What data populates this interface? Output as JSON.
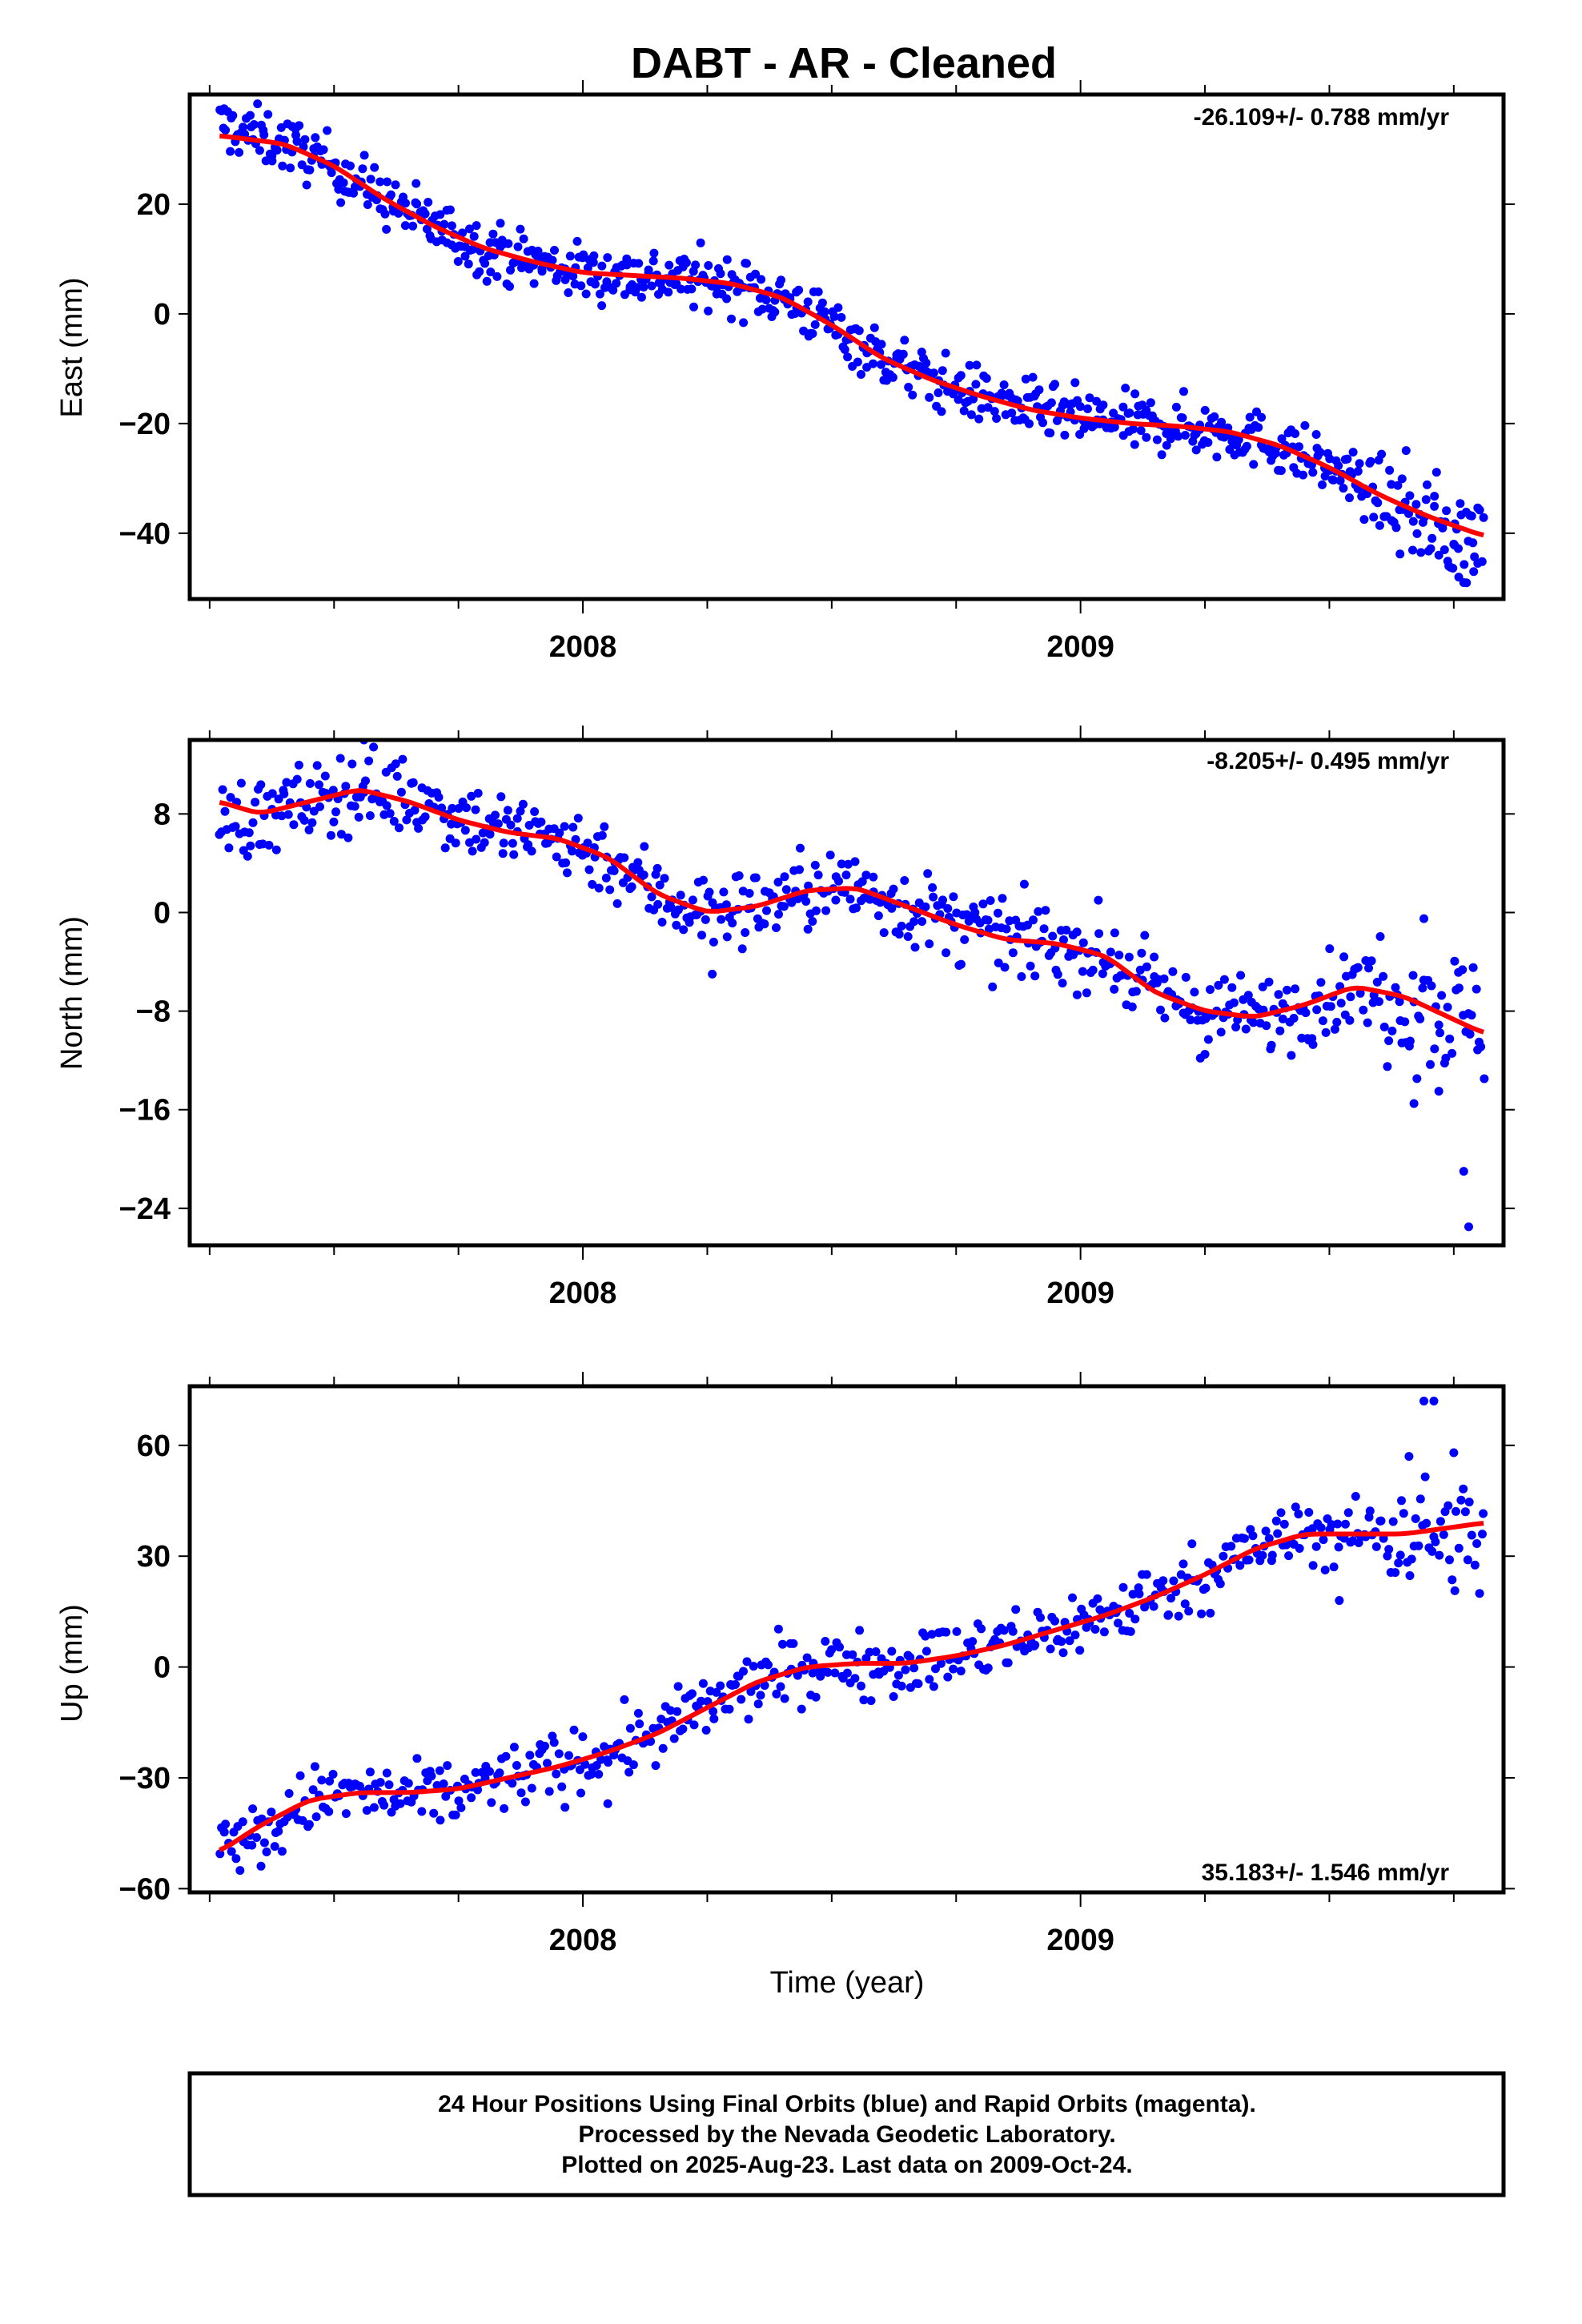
{
  "title": "DABT  - AR - Cleaned",
  "xlabel": "Time (year)",
  "footer": {
    "line1": "24 Hour Positions Using Final Orbits (blue) and Rapid Orbits (magenta).",
    "line2": "Processed by the Nevada Geodetic Laboratory.",
    "line3": "Plotted on 2025-Aug-23. Last data on 2009-Oct-24."
  },
  "colors": {
    "data": "#0000ff",
    "fit": "#ff0000",
    "frame": "#000000"
  },
  "chart_data": [
    {
      "type": "scatter",
      "component": "East",
      "ylabel": "East (mm)",
      "rate_text": "-26.109+/- 0.788 mm/yr",
      "rate_position": "top-right",
      "xlim": [
        2007.21,
        2009.85
      ],
      "ylim": [
        -52,
        40
      ],
      "yticks": [
        20,
        0,
        -20,
        -40
      ],
      "xticks_labeled": [
        "2008",
        "2009"
      ],
      "fit": {
        "x": [
          2007.27,
          2007.4,
          2007.5,
          2007.6,
          2007.7,
          2007.8,
          2007.9,
          2008.0,
          2008.1,
          2008.2,
          2008.3,
          2008.4,
          2008.5,
          2008.6,
          2008.7,
          2008.8,
          2008.9,
          2009.0,
          2009.1,
          2009.2,
          2009.3,
          2009.4,
          2009.5,
          2009.6,
          2009.7,
          2009.81
        ],
        "y": [
          32.5,
          31,
          27,
          21,
          16,
          12,
          9.5,
          7.5,
          7,
          6.5,
          5.5,
          3,
          -2,
          -8,
          -12,
          -15,
          -17.5,
          -19,
          -20,
          -20.5,
          -21.5,
          -24,
          -28,
          -33,
          -37,
          -40.5
        ]
      },
      "points": {
        "base_x": [
          2007.27,
          2007.4,
          2007.5,
          2007.6,
          2007.7,
          2007.8,
          2007.9,
          2008.0,
          2008.1,
          2008.2,
          2008.3,
          2008.4,
          2008.5,
          2008.6,
          2008.7,
          2008.8,
          2008.9,
          2009.0,
          2009.1,
          2009.2,
          2009.3,
          2009.4,
          2009.5,
          2009.6,
          2009.7,
          2009.81
        ],
        "base_y": [
          34.5,
          31,
          27,
          21,
          16,
          12,
          9.5,
          7.5,
          7,
          6.5,
          5.5,
          3,
          -2,
          -8,
          -12,
          -15,
          -17.5,
          -19,
          -20,
          -20.5,
          -21.5,
          -24,
          -28,
          -33,
          -38,
          -42
        ],
        "spread": 2.6,
        "count": 760,
        "outliers_x": [
          2009.74,
          2009.76,
          2009.77,
          2009.72,
          2009.79,
          2009.75
        ],
        "outliers_y": [
          -46,
          -48,
          -49,
          -44,
          -47,
          -42
        ]
      }
    },
    {
      "type": "scatter",
      "component": "North",
      "ylabel": "North (mm)",
      "rate_text": "-8.205+/- 0.495 mm/yr",
      "rate_position": "top-right",
      "xlim": [
        2007.21,
        2009.85
      ],
      "ylim": [
        -27,
        14
      ],
      "yticks": [
        8,
        0,
        -8,
        -16,
        -24
      ],
      "xticks_labeled": [
        "2008",
        "2009"
      ],
      "fit": {
        "x": [
          2007.27,
          2007.35,
          2007.45,
          2007.55,
          2007.65,
          2007.75,
          2007.85,
          2007.95,
          2008.05,
          2008.15,
          2008.25,
          2008.35,
          2008.45,
          2008.55,
          2008.65,
          2008.75,
          2008.85,
          2008.95,
          2009.05,
          2009.15,
          2009.25,
          2009.35,
          2009.45,
          2009.55,
          2009.65,
          2009.81
        ],
        "y": [
          9,
          8,
          9,
          10,
          9,
          7.5,
          6.5,
          6,
          4.5,
          1.5,
          0,
          0.5,
          1.8,
          2,
          0.5,
          -1,
          -2.2,
          -2.5,
          -3.5,
          -6.5,
          -8,
          -8.5,
          -7.5,
          -6,
          -6.8,
          -9.8
        ]
      },
      "points": {
        "base_x": [
          2007.27,
          2007.35,
          2007.45,
          2007.55,
          2007.65,
          2007.75,
          2007.85,
          2007.95,
          2008.05,
          2008.15,
          2008.25,
          2008.35,
          2008.45,
          2008.55,
          2008.65,
          2008.75,
          2008.85,
          2008.95,
          2009.05,
          2009.15,
          2009.25,
          2009.35,
          2009.45,
          2009.55,
          2009.65,
          2009.81
        ],
        "base_y": [
          8,
          7.5,
          9,
          10,
          9.5,
          8,
          6.5,
          6,
          4.5,
          1.5,
          0,
          0.5,
          1.8,
          2,
          0.5,
          -1,
          -2.2,
          -2.5,
          -3.5,
          -6.5,
          -8,
          -8.5,
          -7.5,
          -6,
          -6.8,
          -9
        ],
        "spread": 1.6,
        "count": 640,
        "outliers_x": [
          2009.77,
          2009.78,
          2009.67,
          2009.72,
          2009.69,
          2008.26,
          2009.25,
          2007.56
        ],
        "outliers_y": [
          -21,
          -25.5,
          -15.5,
          -14.5,
          -0.5,
          -5,
          -11.5,
          14
        ]
      }
    },
    {
      "type": "scatter",
      "component": "Up",
      "ylabel": "Up (mm)",
      "rate_text": "35.183+/- 1.546 mm/yr",
      "rate_position": "bottom-right",
      "xlim": [
        2007.21,
        2009.85
      ],
      "ylim": [
        -61,
        76
      ],
      "yticks": [
        60,
        30,
        0,
        -30,
        -60
      ],
      "xticks_labeled": [
        "2008",
        "2009"
      ],
      "fit": {
        "x": [
          2007.27,
          2007.35,
          2007.45,
          2007.55,
          2007.65,
          2007.75,
          2007.85,
          2007.95,
          2008.05,
          2008.15,
          2008.25,
          2008.35,
          2008.45,
          2008.55,
          2008.65,
          2008.75,
          2008.85,
          2008.95,
          2009.05,
          2009.15,
          2009.25,
          2009.35,
          2009.45,
          2009.55,
          2009.65,
          2009.81
        ],
        "y": [
          -50,
          -43,
          -36,
          -34,
          -34,
          -33,
          -30,
          -27,
          -23,
          -18,
          -11,
          -4,
          0,
          1,
          1,
          3,
          6,
          10,
          14,
          19,
          25,
          32,
          36,
          36,
          36,
          39
        ]
      },
      "points": {
        "base_x": [
          2007.27,
          2007.35,
          2007.45,
          2007.55,
          2007.65,
          2007.75,
          2007.85,
          2007.95,
          2008.05,
          2008.15,
          2008.25,
          2008.35,
          2008.45,
          2008.55,
          2008.65,
          2008.75,
          2008.85,
          2008.95,
          2009.05,
          2009.15,
          2009.25,
          2009.35,
          2009.45,
          2009.55,
          2009.65,
          2009.81
        ],
        "base_y": [
          -46,
          -47,
          -36,
          -34,
          -36,
          -34,
          -30,
          -27,
          -23,
          -18,
          -11,
          -4,
          0,
          1,
          1,
          3,
          6,
          10,
          14,
          19,
          25,
          32,
          36,
          36,
          37,
          34
        ],
        "spread": 4.5,
        "count": 560,
        "outliers_x": [
          2009.69,
          2009.71,
          2009.66,
          2009.75,
          2008.05,
          2009.52
        ],
        "outliers_y": [
          72,
          72,
          57,
          58,
          -37,
          18
        ]
      }
    }
  ]
}
